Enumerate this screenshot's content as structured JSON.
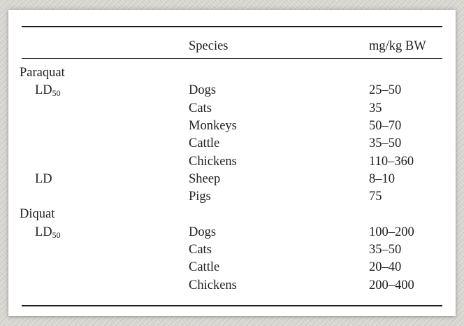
{
  "table": {
    "header": {
      "species": "Species",
      "value": "mg/kg BW"
    },
    "groups": [
      {
        "name": "Paraquat",
        "subgroups": [
          {
            "label_main": "LD",
            "label_sub": "50",
            "rows": [
              {
                "species": "Dogs",
                "value": "25–50"
              },
              {
                "species": "Cats",
                "value": "35"
              },
              {
                "species": "Monkeys",
                "value": "50–70"
              },
              {
                "species": "Cattle",
                "value": "35–50"
              },
              {
                "species": "Chickens",
                "value": "110–360"
              }
            ]
          },
          {
            "label_main": "LD",
            "label_sub": "",
            "rows": [
              {
                "species": "Sheep",
                "value": "8–10"
              },
              {
                "species": "Pigs",
                "value": "75"
              }
            ]
          }
        ]
      },
      {
        "name": "Diquat",
        "subgroups": [
          {
            "label_main": "LD",
            "label_sub": "50",
            "rows": [
              {
                "species": "Dogs",
                "value": "100–200"
              },
              {
                "species": "Cats",
                "value": "35–50"
              },
              {
                "species": "Cattle",
                "value": "20–40"
              },
              {
                "species": "Chickens",
                "value": "200–400"
              }
            ]
          }
        ]
      }
    ]
  }
}
